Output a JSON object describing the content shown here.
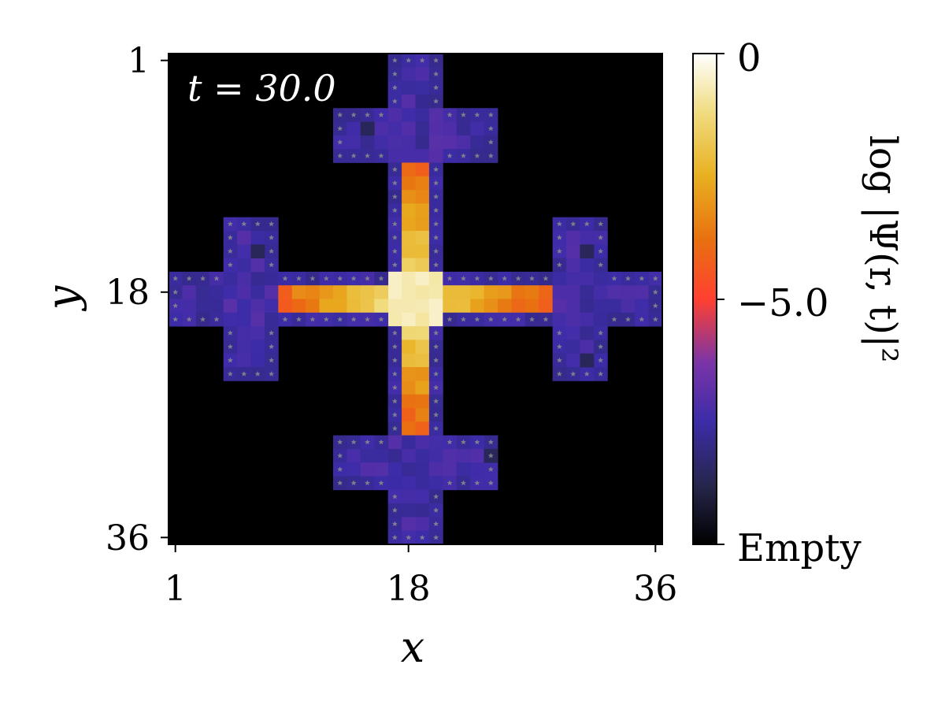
{
  "chart_data": {
    "type": "heatmap",
    "xlabel": "x",
    "ylabel": "y",
    "annotation": "t = 30.0",
    "x_ticks": [
      "1",
      "18",
      "36"
    ],
    "y_ticks": [
      "1",
      "18",
      "36"
    ],
    "x_range": [
      1,
      36
    ],
    "y_range": [
      1,
      36
    ],
    "y_inverted": true,
    "grid": false,
    "colorbar": {
      "label": "log |Ψ(r, t)|²",
      "ticks": [
        "0",
        "−5.0",
        "Empty"
      ],
      "colormap": "CMRmap",
      "range": [
        -10.0,
        0
      ]
    },
    "empty_color": "#000000",
    "marker": "star",
    "marker_color": "#808080",
    "arms": {
      "up": {
        "value_near_center": -1.3,
        "value_far": -4.0
      },
      "down": {
        "value_near_center": -1.3,
        "value_far": -4.2
      },
      "left": {
        "value_near_center": -1.2,
        "value_far": -4.0
      },
      "right": {
        "value_near_center": -1.6,
        "value_far": -4.3
      },
      "center_value": -0.7,
      "crossbar_value": -7.4,
      "edge_value": -7.6,
      "dark_value": -8.6
    }
  }
}
